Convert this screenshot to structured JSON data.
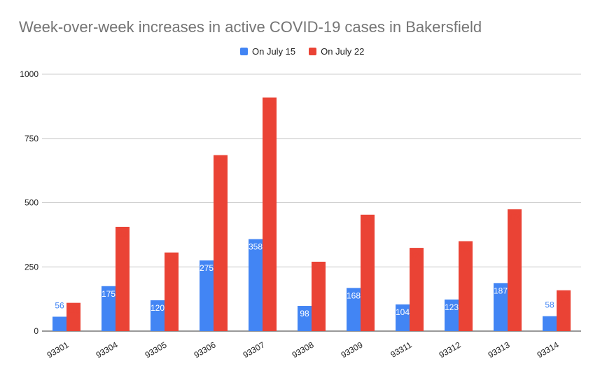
{
  "chart_data": {
    "type": "bar",
    "title": "Week-over-week increases in active COVID-19 cases in Bakersfield",
    "xlabel": "",
    "ylabel": "",
    "ylim": [
      0,
      1000
    ],
    "yticks": [
      0,
      250,
      500,
      750,
      1000
    ],
    "grid": true,
    "legend_position": "top",
    "categories": [
      "93301",
      "93304",
      "93305",
      "93306",
      "93307",
      "93308",
      "93309",
      "93311",
      "93312",
      "93313",
      "93314"
    ],
    "series": [
      {
        "name": "On July 15",
        "color": "#4285f4",
        "values": [
          56,
          175,
          120,
          275,
          358,
          98,
          168,
          104,
          123,
          187,
          58
        ]
      },
      {
        "name": "On July 22",
        "color": "#ea4335",
        "values": [
          110,
          406,
          306,
          685,
          909,
          270,
          453,
          324,
          350,
          474,
          159
        ]
      }
    ]
  }
}
